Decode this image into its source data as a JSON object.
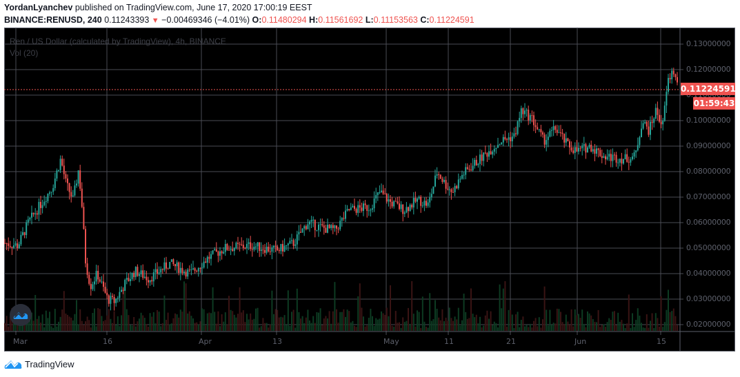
{
  "header": {
    "author": "YordanLyanchev",
    "published_text": " published on TradingView.com, June 17, 2020 17:00:19 EEST",
    "symbol": "BINANCE:RENUSD, 240",
    "last": "0.11243393",
    "change_arrow": "▼",
    "change": "−0.00469346 (−4.01%)",
    "o_label": "O:",
    "o": "0.11480294",
    "h_label": "H:",
    "h": "0.11561692",
    "l_label": "L:",
    "l": "0.11153563",
    "c_label": "C:",
    "c": "0.11224591"
  },
  "legend": {
    "title": "Ren / US Dollar (calculated by TradingView), 4h, BINANCE",
    "volume": "Vol (20)"
  },
  "price_tag": "0.11224591",
  "countdown_tag": "01:59:43",
  "footer": {
    "brand": "TradingView"
  },
  "colors": {
    "up": "#26a69a",
    "down": "#ef5350",
    "background": "#000000",
    "grid": "#4a4c55",
    "axis_text": "#5d606b"
  },
  "chart_data": {
    "type": "candlestick",
    "title": "Ren / US Dollar (calculated by TradingView), 4h, BINANCE",
    "symbol": "BINANCE:RENUSD",
    "interval": "240",
    "xlabel": "",
    "ylabel": "",
    "ylim": [
      0.0185,
      0.1335
    ],
    "y_ticks": [
      "0.13000000",
      "0.12000000",
      "0.11000000",
      "0.10000000",
      "0.09000000",
      "0.08000000",
      "0.07000000",
      "0.06000000",
      "0.05000000",
      "0.04000000",
      "0.03000000",
      "0.02000000"
    ],
    "x_ticks": [
      "Mar",
      "16",
      "Apr",
      "13",
      "May",
      "11",
      "21",
      "Jun",
      "15"
    ],
    "grid": true,
    "current_price": 0.11224591,
    "approx_close_by_tick": [
      {
        "x": "Mar",
        "close": 0.051
      },
      {
        "x": "early Mar peak",
        "close": 0.085
      },
      {
        "x": "16",
        "close": 0.03
      },
      {
        "x": "Apr",
        "close": 0.043
      },
      {
        "x": "13",
        "close": 0.058
      },
      {
        "x": "May",
        "close": 0.068
      },
      {
        "x": "11",
        "close": 0.072
      },
      {
        "x": "21",
        "close": 0.093
      },
      {
        "x": "late May peak",
        "close": 0.108
      },
      {
        "x": "Jun",
        "close": 0.088
      },
      {
        "x": "15",
        "close": 0.105
      },
      {
        "x": "last",
        "close": 0.1122
      }
    ]
  }
}
